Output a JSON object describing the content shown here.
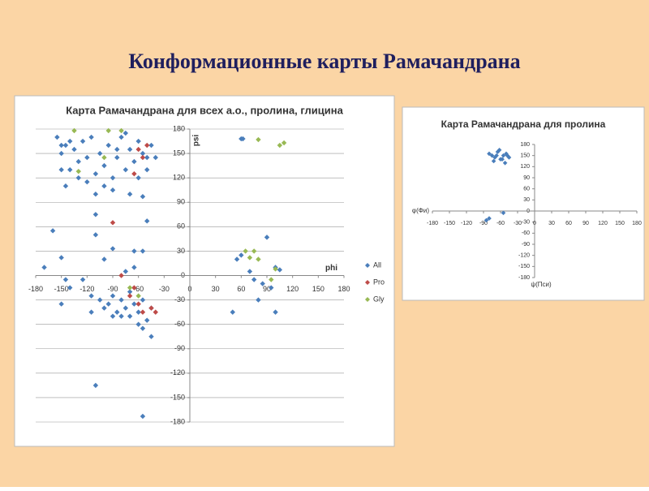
{
  "title": "Конформационные карты Рамачандрана",
  "chart_data": [
    {
      "type": "scatter",
      "title": "Карта Рамачандрана для всех а.о., пролина, глицина",
      "x_label": "phi",
      "y_label": "psi",
      "legend": "right",
      "grid": true,
      "xlim": [
        -180,
        180
      ],
      "xticks": [
        -180,
        -150,
        -120,
        -90,
        -60,
        -30,
        0,
        30,
        60,
        90,
        120,
        150,
        180
      ],
      "ylim": [
        -180,
        180
      ],
      "yticks": [
        180,
        150,
        120,
        90,
        60,
        30,
        0,
        -30,
        -60,
        -90,
        -120,
        -150,
        -180
      ],
      "series": [
        {
          "name": "All",
          "color": "#4a7ebb",
          "x": [
            -155,
            -150,
            -145,
            -140,
            -135,
            -130,
            -125,
            -120,
            -115,
            -110,
            -105,
            -100,
            -95,
            -90,
            -85,
            -80,
            -75,
            -70,
            -65,
            -60,
            -55,
            -50,
            -45,
            -100,
            -110,
            -145,
            -60,
            -70,
            -55,
            -130,
            -120,
            -90,
            -140,
            -150,
            -85,
            -75,
            -50,
            -40,
            -150,
            -160,
            -110,
            -110,
            -90,
            -100,
            -65,
            -55,
            -50,
            -150,
            -170,
            -145,
            -140,
            -125,
            -115,
            -105,
            -100,
            -95,
            -90,
            -85,
            -80,
            -75,
            -70,
            -65,
            -60,
            -55,
            -50,
            -45,
            -60,
            -70,
            -80,
            -90,
            -55,
            -45,
            -150,
            -115,
            -110,
            -55,
            -65,
            -75,
            60,
            62,
            55,
            60,
            70,
            75,
            85,
            90,
            100,
            105,
            50,
            100,
            80,
            95
          ],
          "values": [
            170,
            150,
            160,
            130,
            155,
            140,
            165,
            145,
            170,
            125,
            150,
            135,
            160,
            120,
            145,
            170,
            130,
            155,
            140,
            165,
            150,
            130,
            160,
            110,
            100,
            110,
            120,
            100,
            97,
            120,
            115,
            105,
            165,
            130,
            155,
            175,
            145,
            145,
            160,
            55,
            75,
            50,
            33,
            20,
            30,
            30,
            67,
            22,
            10,
            -5,
            -15,
            -5,
            -25,
            -30,
            -40,
            -35,
            -25,
            -45,
            -30,
            -40,
            -50,
            -35,
            -45,
            -30,
            -55,
            -40,
            -60,
            -20,
            -50,
            -50,
            -65,
            -75,
            -35,
            -45,
            -135,
            -173,
            10,
            5,
            168,
            168,
            20,
            25,
            5,
            -5,
            -10,
            47,
            10,
            7,
            -45,
            -45,
            -30,
            -15
          ]
        },
        {
          "name": "Pro",
          "color": "#be4b48",
          "x": [
            -90,
            -80,
            -60,
            -65,
            -55,
            -50,
            -70,
            -60,
            -55,
            -45,
            -40,
            -65
          ],
          "values": [
            65,
            0,
            155,
            125,
            145,
            160,
            -25,
            -35,
            -45,
            -40,
            -45,
            -15
          ]
        },
        {
          "name": "Gly",
          "color": "#98b954",
          "x": [
            -135,
            -95,
            -80,
            -130,
            -100,
            80,
            105,
            110,
            65,
            75,
            70,
            80,
            100,
            95,
            -70,
            -60
          ],
          "values": [
            178,
            178,
            178,
            128,
            145,
            167,
            160,
            163,
            30,
            30,
            22,
            20,
            8,
            -5,
            -15,
            -25
          ]
        }
      ]
    },
    {
      "type": "scatter",
      "title": "Карта Рамачандрана для пролина",
      "x_label": "ψ(Пси)",
      "y_label": "φ(Фи)",
      "grid": false,
      "color": "#4a7ebb",
      "xlim": [
        -180,
        180
      ],
      "xticks": [
        -180,
        -150,
        -120,
        -90,
        -60,
        -30,
        0,
        30,
        60,
        90,
        120,
        150,
        180
      ],
      "ylim": [
        -180,
        180
      ],
      "yticks": [
        180,
        150,
        120,
        90,
        60,
        30,
        0,
        -30,
        -60,
        -90,
        -120,
        -150,
        -180
      ],
      "x": [
        -80,
        -75,
        -70,
        -65,
        -60,
        -55,
        -50,
        -45,
        -72,
        -62,
        -52,
        -67,
        -57,
        -48,
        -85,
        -80,
        -55
      ],
      "values": [
        155,
        150,
        145,
        160,
        140,
        150,
        155,
        145,
        135,
        165,
        130,
        150,
        140,
        150,
        -25,
        -20,
        -5
      ]
    }
  ]
}
